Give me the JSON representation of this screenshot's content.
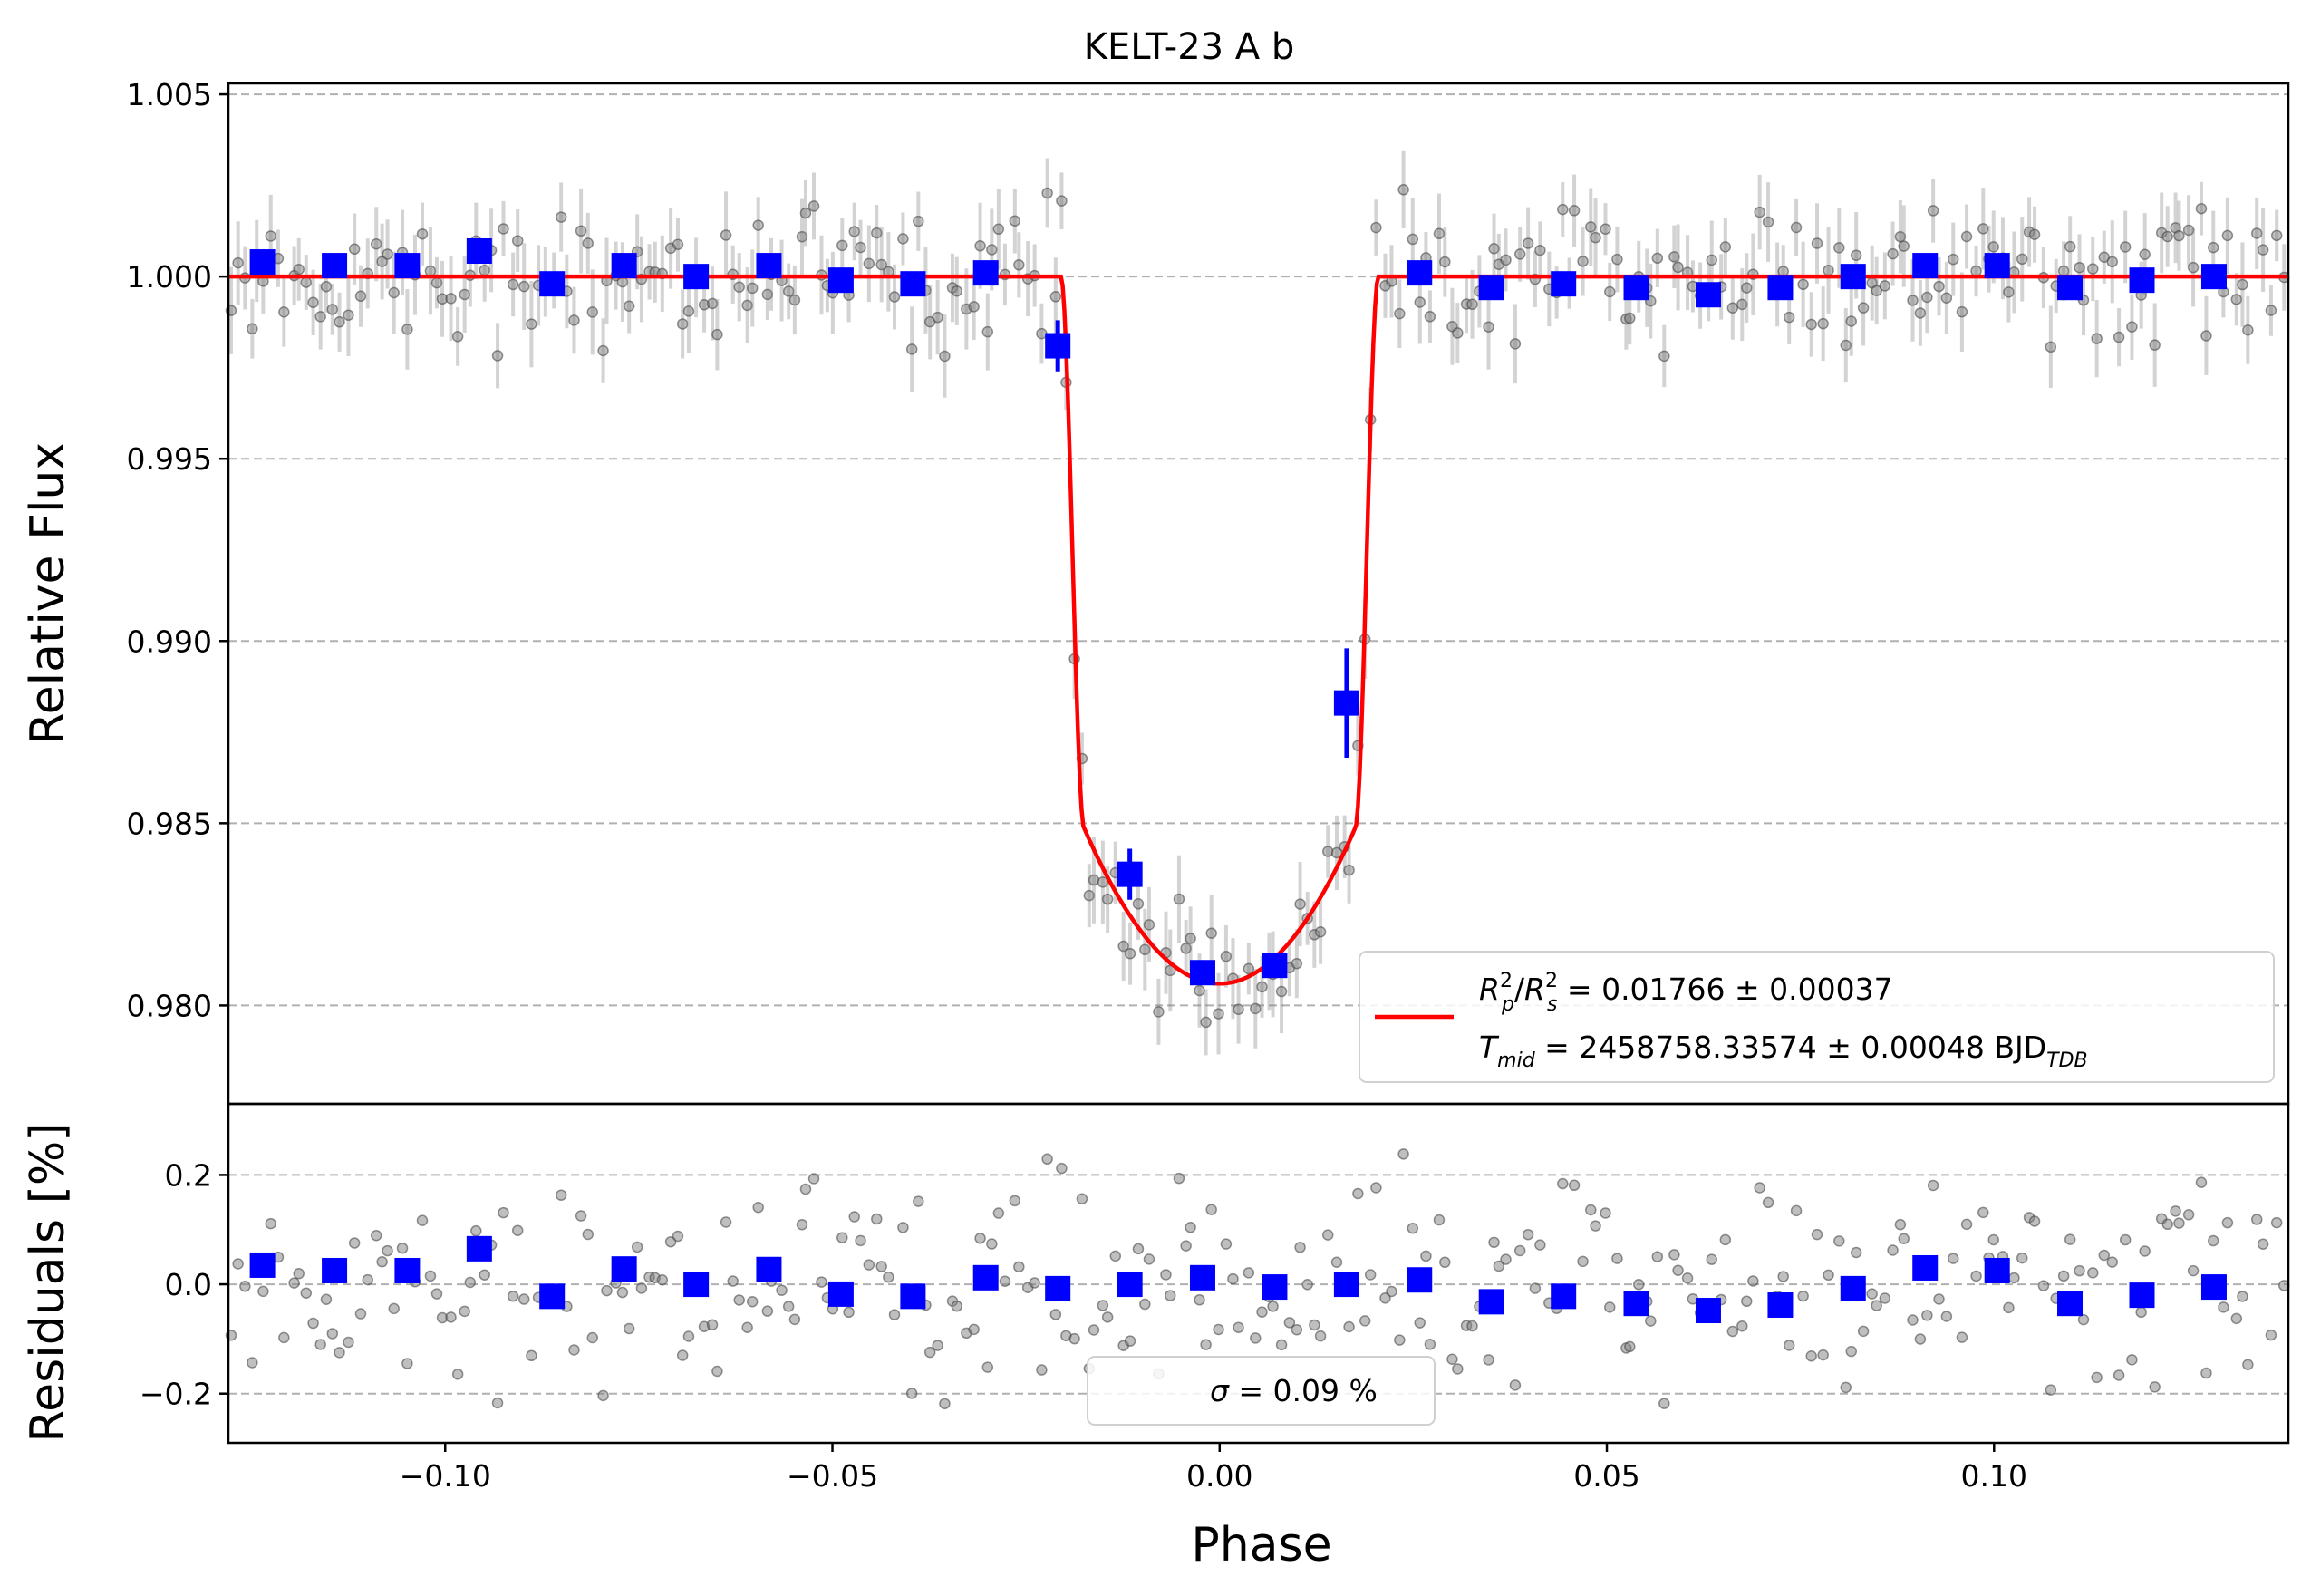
{
  "figure": {
    "title": "KELT-23 A b"
  },
  "chart_data": [
    {
      "type": "scatter",
      "panel": "light-curve",
      "title": "KELT-23 A b",
      "xlabel": "",
      "ylabel": "Relative Flux",
      "xlim": [
        -0.128,
        0.138
      ],
      "ylim": [
        0.9773,
        1.0053
      ],
      "grid": "y-dashed",
      "yticks": [
        0.98,
        0.985,
        0.99,
        0.995,
        1.0,
        1.005
      ],
      "ytick_labels": [
        "0.980",
        "0.985",
        "0.990",
        "0.995",
        "1.000",
        "1.005"
      ],
      "model": {
        "name": "transit model",
        "color": "#ff0000",
        "params": {
          "baseline": 1.0,
          "depth": 0.0194,
          "ingress_start": 0.0205,
          "full_transit_edge": 0.0175
        }
      },
      "raw_points": {
        "color": "#808080",
        "phase_min": -0.128,
        "phase_max": 0.138,
        "count": 300,
        "scatter_sigma": 0.0009
      },
      "binned": {
        "color": "#0000ff",
        "phase": [
          -0.1236,
          -0.1143,
          -0.1049,
          -0.0956,
          -0.0862,
          -0.0769,
          -0.0676,
          -0.0582,
          -0.0489,
          -0.0396,
          -0.0302,
          -0.0209,
          -0.0116,
          -0.0022,
          0.0071,
          0.0164,
          0.0258,
          0.0351,
          0.0444,
          0.0538,
          0.0631,
          0.0724,
          0.0818,
          0.0911,
          0.1004,
          0.1098,
          0.1191,
          0.1284
        ],
        "flux": [
          1.0004,
          1.0003,
          1.0003,
          1.0007,
          0.9998,
          1.0003,
          1.0,
          1.0003,
          0.9999,
          0.9998,
          1.0001,
          0.9981,
          0.9836,
          0.9809,
          0.9811,
          0.9883,
          1.0001,
          0.9997,
          0.9998,
          0.9997,
          0.9995,
          0.9997,
          1.0,
          1.0003,
          1.0003,
          0.9997,
          0.9999,
          1.0
        ],
        "error": [
          0.0002,
          0.0002,
          0.0002,
          0.0002,
          0.0002,
          0.0002,
          0.0002,
          0.0002,
          0.0002,
          0.0002,
          0.0002,
          0.0007,
          0.0007,
          0.0003,
          0.0003,
          0.0015,
          0.0002,
          0.0002,
          0.0002,
          0.0002,
          0.0002,
          0.0002,
          0.0002,
          0.0002,
          0.0002,
          0.0002,
          0.0002,
          0.0002
        ]
      },
      "legend": {
        "placement": "lower-right",
        "entries": [
          {
            "line1": "R<tspan font-style='italic'></tspan>",
            "rp_rs_text": " = 0.01766 ± 0.00037",
            "tmid_text": " = 2458758.33574 ± 0.00048 BJD"
          }
        ],
        "rp_rs_value": "0.01766 ± 0.00037",
        "tmid_value": "2458758.33574 ± 0.00048",
        "tmid_unit": "BJD",
        "tmid_unit_sub": "TDB"
      }
    },
    {
      "type": "scatter",
      "panel": "residuals",
      "xlabel": "Phase",
      "ylabel": "Residuals [%]",
      "xlim": [
        -0.128,
        0.138
      ],
      "ylim": [
        -0.29,
        0.33
      ],
      "grid": "y-dashed",
      "xticks": [
        -0.1,
        -0.05,
        0.0,
        0.05,
        0.1
      ],
      "xtick_labels": [
        "−0.10",
        "−0.05",
        "0.00",
        "0.05",
        "0.10"
      ],
      "yticks": [
        -0.2,
        0.0,
        0.2
      ],
      "ytick_labels": [
        "−0.2",
        "0.0",
        "0.2"
      ],
      "binned": {
        "phase": [
          -0.1236,
          -0.1143,
          -0.1049,
          -0.0956,
          -0.0862,
          -0.0769,
          -0.0676,
          -0.0582,
          -0.0489,
          -0.0396,
          -0.0302,
          -0.0209,
          -0.0116,
          -0.0022,
          0.0071,
          0.0164,
          0.0258,
          0.0351,
          0.0444,
          0.0538,
          0.0631,
          0.0724,
          0.0818,
          0.0911,
          0.1004,
          0.1098,
          0.1191,
          0.1284
        ],
        "residual": [
          0.035,
          0.025,
          0.025,
          0.065,
          -0.022,
          0.028,
          0.0,
          0.027,
          -0.018,
          -0.022,
          0.012,
          -0.008,
          0.0,
          0.012,
          -0.005,
          0.0,
          0.008,
          -0.032,
          -0.022,
          -0.035,
          -0.048,
          -0.038,
          -0.008,
          0.03,
          0.025,
          -0.035,
          -0.02,
          -0.005
        ]
      },
      "raw_points": {
        "count": 300,
        "scatter_sigma": 0.09
      },
      "legend": {
        "placement": "lower-center",
        "sigma_value": "0.09 %"
      }
    }
  ],
  "legend_text": {
    "rp_label": "R",
    "rp_sub": "p",
    "rp_sup": "2",
    "rs_label": "R",
    "rs_sub": "s",
    "rs_sup": "2",
    "rp_rs_value": " = 0.01766 ± 0.00037",
    "tmid_label": "T",
    "tmid_sub": "mid",
    "tmid_value": " = 2458758.33574 ± 0.00048 BJD",
    "tmid_unit_sub": "TDB",
    "sigma_label": "σ",
    "sigma_value": " = 0.09 %"
  },
  "colors": {
    "model": "#ff0000",
    "binned": "#0000ff",
    "raw": "#808080",
    "grid": "#b0b0b0"
  }
}
